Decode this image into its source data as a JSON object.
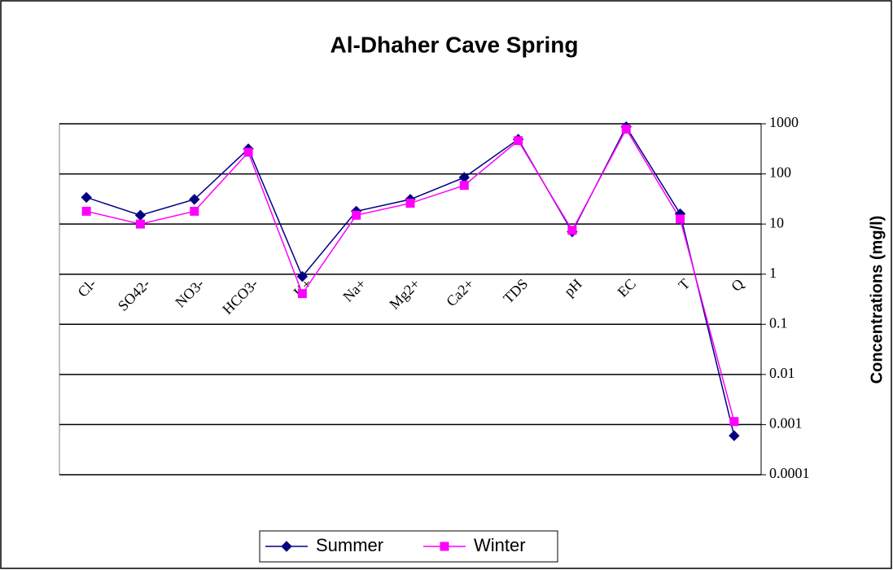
{
  "chart_data": {
    "type": "line",
    "title": "Al-Dhaher Cave Spring",
    "y_label": "Concentrations (mg/l)",
    "y_scale": "log",
    "y_axis_side": "right",
    "grid": true,
    "legend_position": "bottom",
    "categories": [
      "Cl-",
      "SO42-",
      "NO3-",
      "HCO3-",
      "K+",
      "Na+",
      "Mg2+",
      "Ca2+",
      "TDS",
      "pH",
      "EC",
      "T",
      "Q"
    ],
    "series": [
      {
        "name": "Summer",
        "color": "#000080",
        "marker": "diamond",
        "values": [
          34,
          15,
          31,
          316,
          0.9,
          18,
          31,
          85,
          490,
          7,
          870,
          16,
          0.0006
        ]
      },
      {
        "name": "Winter",
        "color": "#ff00ff",
        "marker": "square",
        "values": [
          18,
          10,
          18,
          270,
          0.41,
          15,
          26,
          59,
          460,
          7.5,
          780,
          12.6,
          0.00115
        ]
      }
    ],
    "ylim": [
      0.0001,
      1000
    ],
    "yticks": [
      1000,
      100,
      10,
      1,
      0.1,
      0.01,
      0.001,
      0.0001
    ]
  }
}
